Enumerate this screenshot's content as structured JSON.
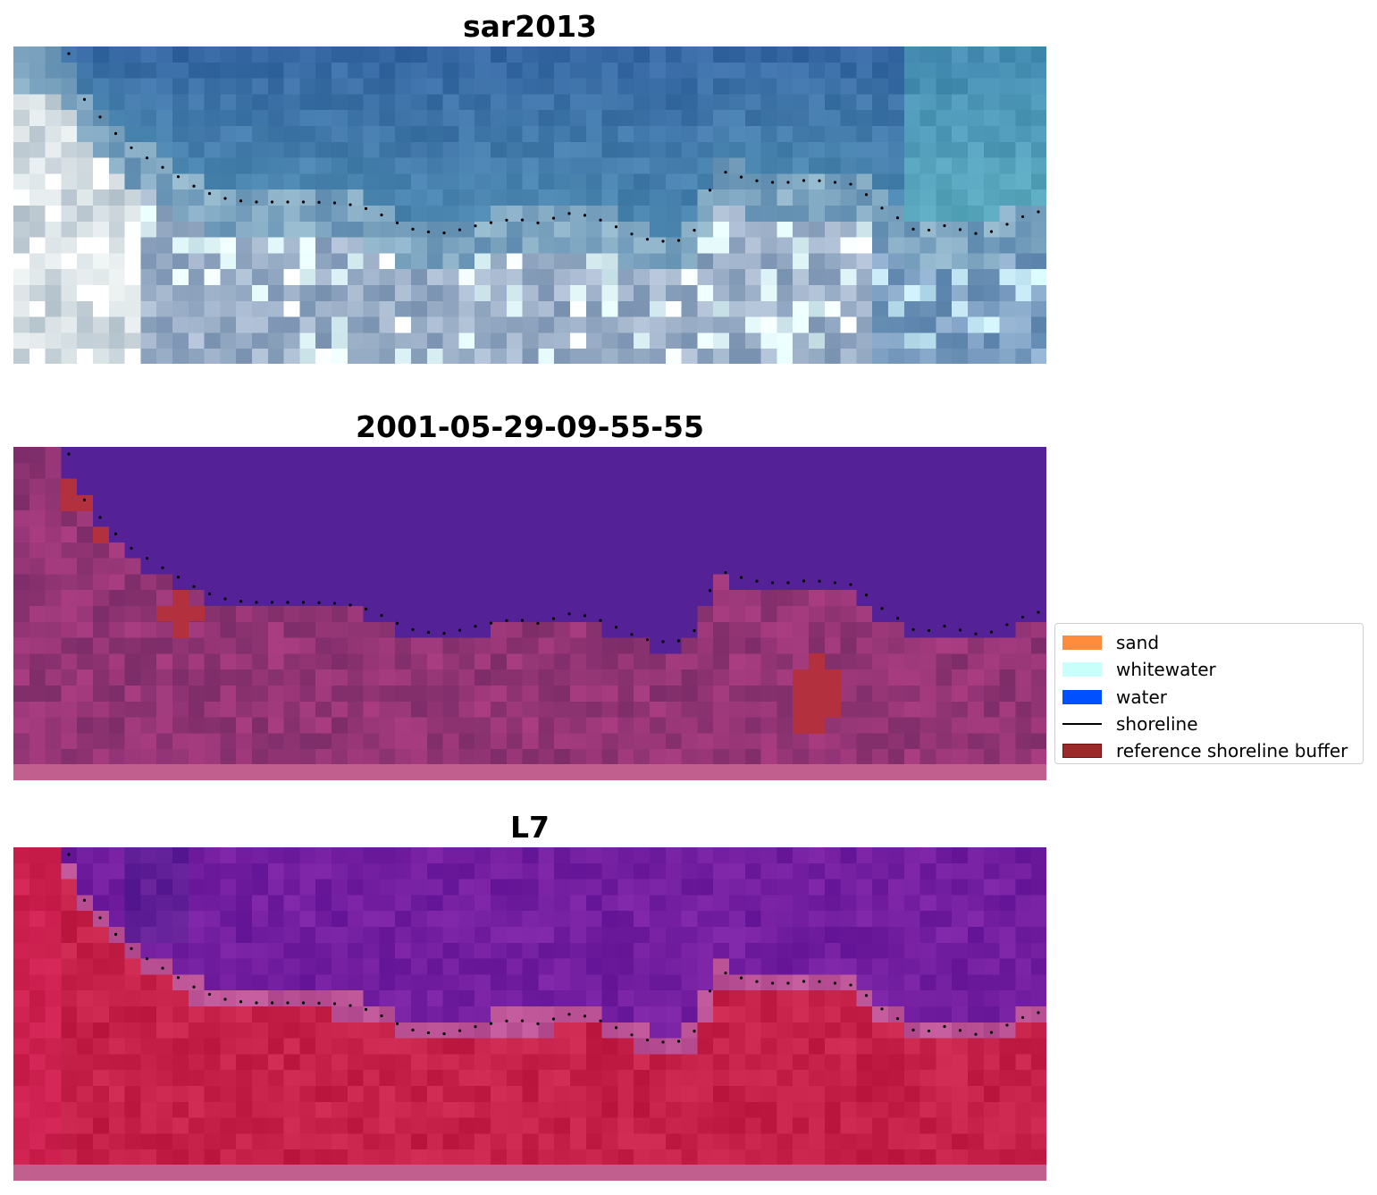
{
  "panels": [
    {
      "title": "sar2013",
      "variant": "rgb"
    },
    {
      "title": "2001-05-29-09-55-55",
      "variant": "classified"
    },
    {
      "title": "L7",
      "variant": "index"
    }
  ],
  "legend": {
    "items": [
      {
        "label": "sand",
        "kind": "patch",
        "color": "#ff8c3c"
      },
      {
        "label": "whitewater",
        "kind": "patch",
        "color": "#c8fffa"
      },
      {
        "label": "water",
        "kind": "patch",
        "color": "#0050ff"
      },
      {
        "label": "shoreline",
        "kind": "line",
        "color": "#000000"
      },
      {
        "label": "reference shoreline buffer",
        "kind": "patch",
        "color": "#9b2a2a"
      }
    ]
  },
  "colors": {
    "water_dark": "#542196",
    "rgb_sea": "#2f639c",
    "index_land": "#c2184a",
    "index_water": "#6f1c9c",
    "buffer": "#b3303f"
  }
}
